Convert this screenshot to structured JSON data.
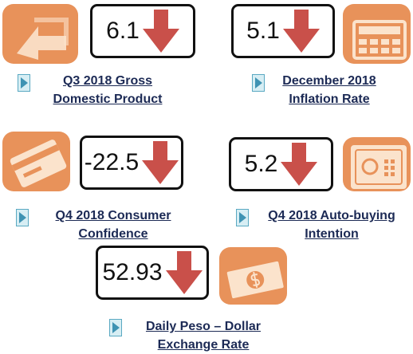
{
  "indicators": [
    {
      "value": 6.1,
      "label": [
        "Q3 2018 Gross",
        "Domestic Product"
      ]
    },
    {
      "value": 5.1,
      "label": [
        "December 2018",
        "Inflation Rate"
      ]
    },
    {
      "value": -22.5,
      "label": [
        "Q4 2018 Consumer",
        "Confidence"
      ]
    },
    {
      "value": 5.2,
      "label": [
        "Q4 2018 Auto-buying",
        "Intention"
      ]
    },
    {
      "value": 52.93,
      "label": [
        "Daily Peso – Dollar",
        "Exchange Rate"
      ]
    }
  ]
}
